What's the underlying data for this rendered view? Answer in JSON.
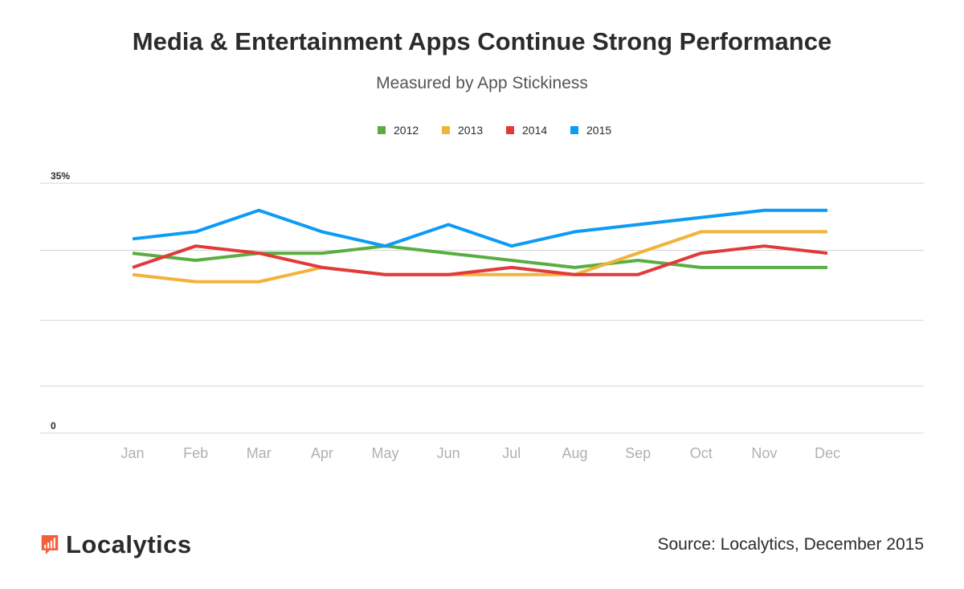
{
  "chart_data": {
    "type": "line",
    "title": "Media & Entertainment Apps Continue Strong Performance",
    "subtitle": "Measured by App Stickiness",
    "xlabel": "",
    "ylabel": "",
    "categories": [
      "Jan",
      "Feb",
      "Mar",
      "Apr",
      "May",
      "Jun",
      "Jul",
      "Aug",
      "Sep",
      "Oct",
      "Nov",
      "Dec"
    ],
    "ylim": [
      0,
      35
    ],
    "y_ticks": [
      {
        "value": 35,
        "label": "35%"
      },
      {
        "value": 25.6,
        "label": ""
      },
      {
        "value": 15.8,
        "label": ""
      },
      {
        "value": 6.6,
        "label": ""
      },
      {
        "value": 0,
        "label": "0"
      }
    ],
    "legend_position": "top-center",
    "grid": true,
    "series": [
      {
        "name": "2012",
        "color": "#5aae41",
        "values": [
          25.2,
          24.2,
          25.2,
          25.2,
          26.2,
          25.2,
          24.2,
          23.2,
          24.2,
          23.2,
          23.2,
          23.2
        ]
      },
      {
        "name": "2013",
        "color": "#f2b33b",
        "values": [
          22.2,
          21.2,
          21.2,
          23.2,
          22.2,
          22.2,
          22.2,
          22.2,
          25.2,
          28.2,
          28.2,
          28.2
        ]
      },
      {
        "name": "2014",
        "color": "#e03a3a",
        "values": [
          23.2,
          26.2,
          25.2,
          23.2,
          22.2,
          22.2,
          23.2,
          22.2,
          22.2,
          25.2,
          26.2,
          25.2
        ]
      },
      {
        "name": "2015",
        "color": "#0c9cf5",
        "values": [
          27.2,
          28.2,
          31.2,
          28.2,
          26.2,
          29.2,
          26.2,
          28.2,
          29.2,
          30.2,
          31.2,
          31.2
        ]
      }
    ]
  },
  "footer": {
    "logo_text": "Localytics",
    "source": "Source: Localytics, December 2015"
  },
  "colors": {
    "logo_accent": "#f2613c",
    "grid": "#d6d6d6",
    "title": "#2b2b2b"
  }
}
